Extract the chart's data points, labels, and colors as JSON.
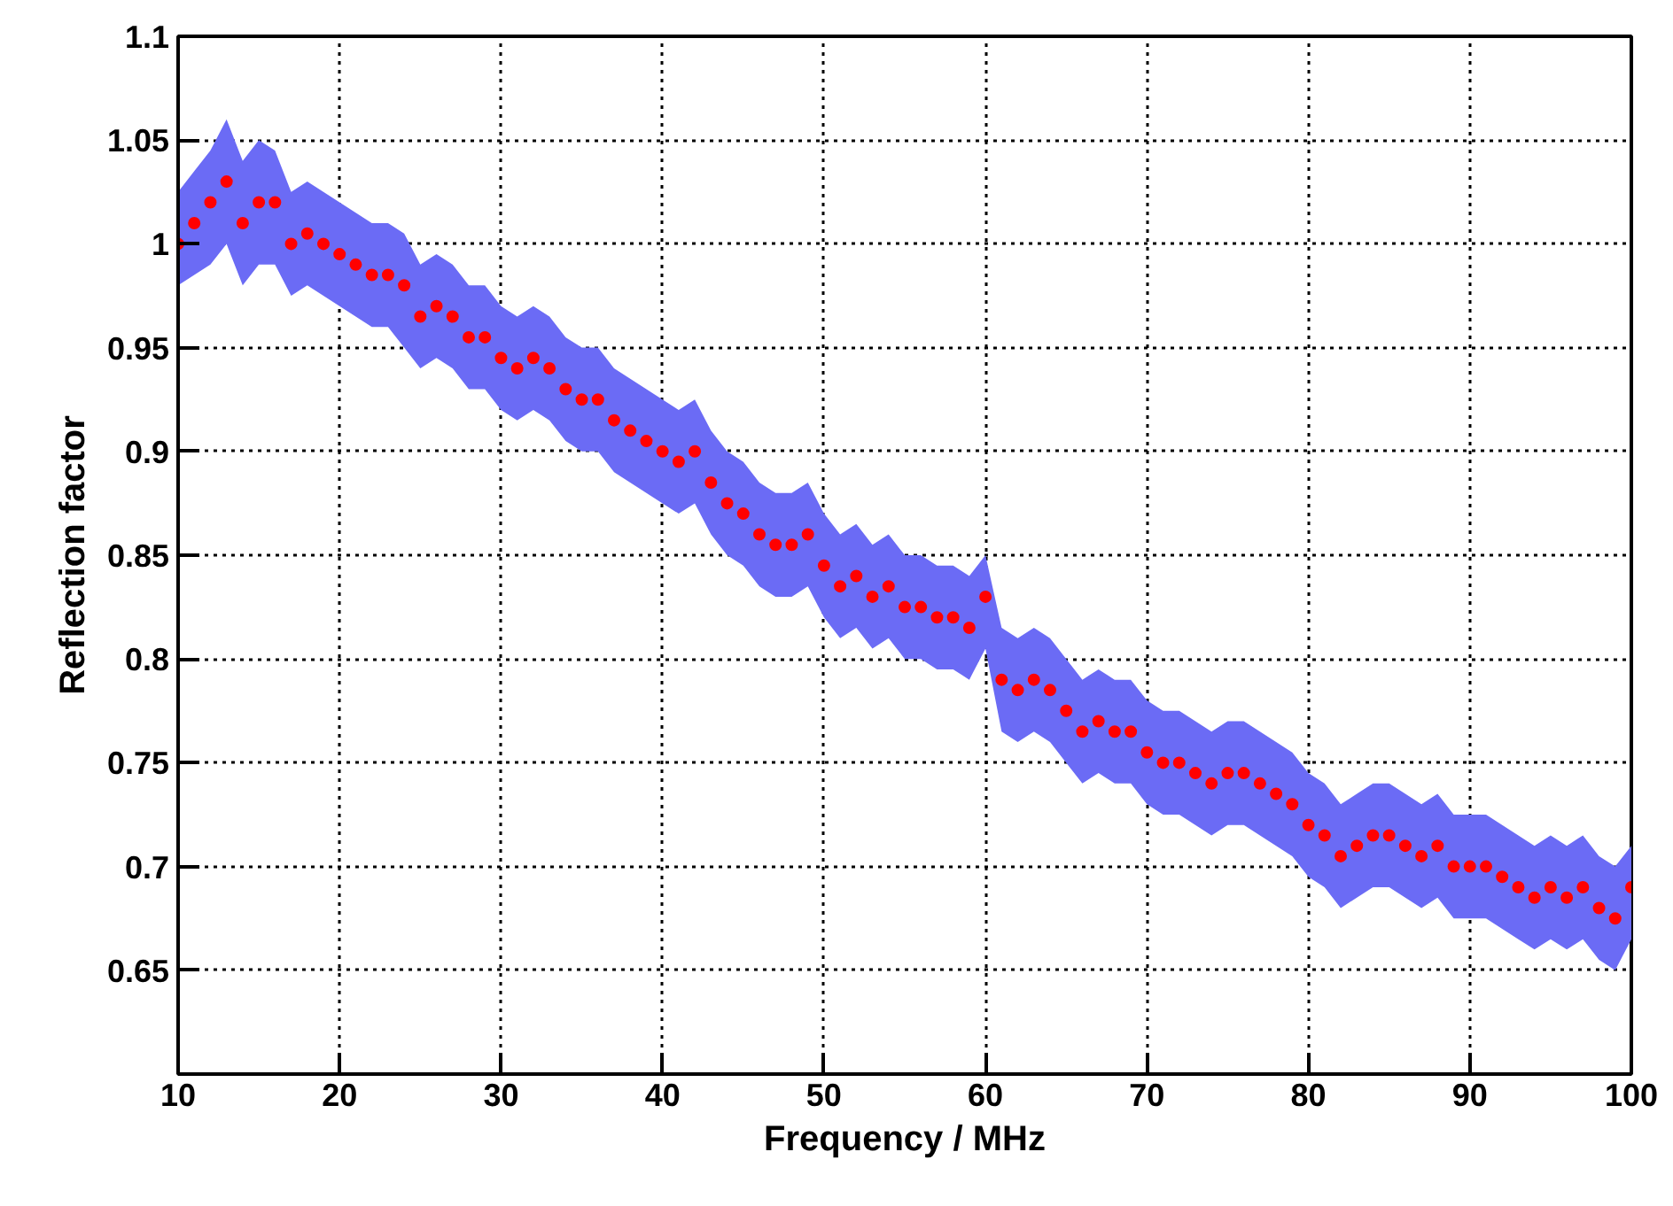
{
  "chart_data": {
    "type": "scatter",
    "xlabel": "Frequency / MHz",
    "ylabel": "Reflection factor",
    "xlim": [
      10,
      100
    ],
    "ylim": [
      0.6,
      1.1
    ],
    "xticks": [
      10,
      20,
      30,
      40,
      50,
      60,
      70,
      80,
      90,
      100
    ],
    "yticks": [
      0.65,
      0.7,
      0.75,
      0.8,
      0.85,
      0.9,
      0.95,
      1,
      1.05,
      1.1
    ],
    "grid": true,
    "marker": "circle",
    "x": [
      10,
      11,
      12,
      13,
      14,
      15,
      16,
      17,
      18,
      19,
      20,
      21,
      22,
      23,
      24,
      25,
      26,
      27,
      28,
      29,
      30,
      31,
      32,
      33,
      34,
      35,
      36,
      37,
      38,
      39,
      40,
      41,
      42,
      43,
      44,
      45,
      46,
      47,
      48,
      49,
      50,
      51,
      52,
      53,
      54,
      55,
      56,
      57,
      58,
      59,
      60,
      61,
      62,
      63,
      64,
      65,
      66,
      67,
      68,
      69,
      70,
      71,
      72,
      73,
      74,
      75,
      76,
      77,
      78,
      79,
      80,
      81,
      82,
      83,
      84,
      85,
      86,
      87,
      88,
      89,
      90,
      91,
      92,
      93,
      94,
      95,
      96,
      97,
      98,
      99,
      100
    ],
    "series": [
      {
        "color": "#ff0000",
        "values": [
          1.0,
          1.01,
          1.02,
          1.03,
          1.01,
          1.02,
          1.02,
          1.0,
          1.005,
          1.0,
          0.995,
          0.99,
          0.985,
          0.985,
          0.98,
          0.965,
          0.97,
          0.965,
          0.955,
          0.955,
          0.945,
          0.94,
          0.945,
          0.94,
          0.93,
          0.925,
          0.925,
          0.915,
          0.91,
          0.905,
          0.9,
          0.895,
          0.9,
          0.885,
          0.875,
          0.87,
          0.86,
          0.855,
          0.855,
          0.86,
          0.845,
          0.835,
          0.84,
          0.83,
          0.835,
          0.825,
          0.825,
          0.82,
          0.82,
          0.815,
          0.83,
          0.79,
          0.785,
          0.79,
          0.785,
          0.775,
          0.765,
          0.77,
          0.765,
          0.765,
          0.755,
          0.75,
          0.75,
          0.745,
          0.74,
          0.745,
          0.745,
          0.74,
          0.735,
          0.73,
          0.72,
          0.715,
          0.705,
          0.71,
          0.715,
          0.715,
          0.71,
          0.705,
          0.71,
          0.7,
          0.7,
          0.7,
          0.695,
          0.69,
          0.685,
          0.69,
          0.685,
          0.69,
          0.68,
          0.675,
          0.69
        ],
        "lower": [
          0.98,
          0.985,
          0.99,
          1.0,
          0.98,
          0.99,
          0.99,
          0.975,
          0.98,
          0.975,
          0.97,
          0.965,
          0.96,
          0.96,
          0.95,
          0.94,
          0.945,
          0.94,
          0.93,
          0.93,
          0.92,
          0.915,
          0.92,
          0.915,
          0.905,
          0.9,
          0.9,
          0.89,
          0.885,
          0.88,
          0.875,
          0.87,
          0.875,
          0.86,
          0.85,
          0.845,
          0.835,
          0.83,
          0.83,
          0.835,
          0.82,
          0.81,
          0.815,
          0.805,
          0.81,
          0.8,
          0.8,
          0.795,
          0.795,
          0.79,
          0.805,
          0.765,
          0.76,
          0.765,
          0.76,
          0.75,
          0.74,
          0.745,
          0.74,
          0.74,
          0.73,
          0.725,
          0.725,
          0.72,
          0.715,
          0.72,
          0.72,
          0.715,
          0.71,
          0.705,
          0.695,
          0.69,
          0.68,
          0.685,
          0.69,
          0.69,
          0.685,
          0.68,
          0.685,
          0.675,
          0.675,
          0.675,
          0.67,
          0.665,
          0.66,
          0.665,
          0.66,
          0.665,
          0.655,
          0.65,
          0.665
        ],
        "upper": [
          1.025,
          1.035,
          1.045,
          1.06,
          1.04,
          1.05,
          1.045,
          1.025,
          1.03,
          1.025,
          1.02,
          1.015,
          1.01,
          1.01,
          1.005,
          0.99,
          0.995,
          0.99,
          0.98,
          0.98,
          0.97,
          0.965,
          0.97,
          0.965,
          0.955,
          0.95,
          0.95,
          0.94,
          0.935,
          0.93,
          0.925,
          0.92,
          0.925,
          0.91,
          0.9,
          0.895,
          0.885,
          0.88,
          0.88,
          0.885,
          0.87,
          0.86,
          0.865,
          0.855,
          0.86,
          0.85,
          0.85,
          0.845,
          0.845,
          0.84,
          0.85,
          0.815,
          0.81,
          0.815,
          0.81,
          0.8,
          0.79,
          0.795,
          0.79,
          0.79,
          0.78,
          0.775,
          0.775,
          0.77,
          0.765,
          0.77,
          0.77,
          0.765,
          0.76,
          0.755,
          0.745,
          0.74,
          0.73,
          0.735,
          0.74,
          0.74,
          0.735,
          0.73,
          0.735,
          0.725,
          0.725,
          0.725,
          0.72,
          0.715,
          0.71,
          0.715,
          0.71,
          0.715,
          0.705,
          0.7,
          0.71
        ]
      }
    ]
  }
}
